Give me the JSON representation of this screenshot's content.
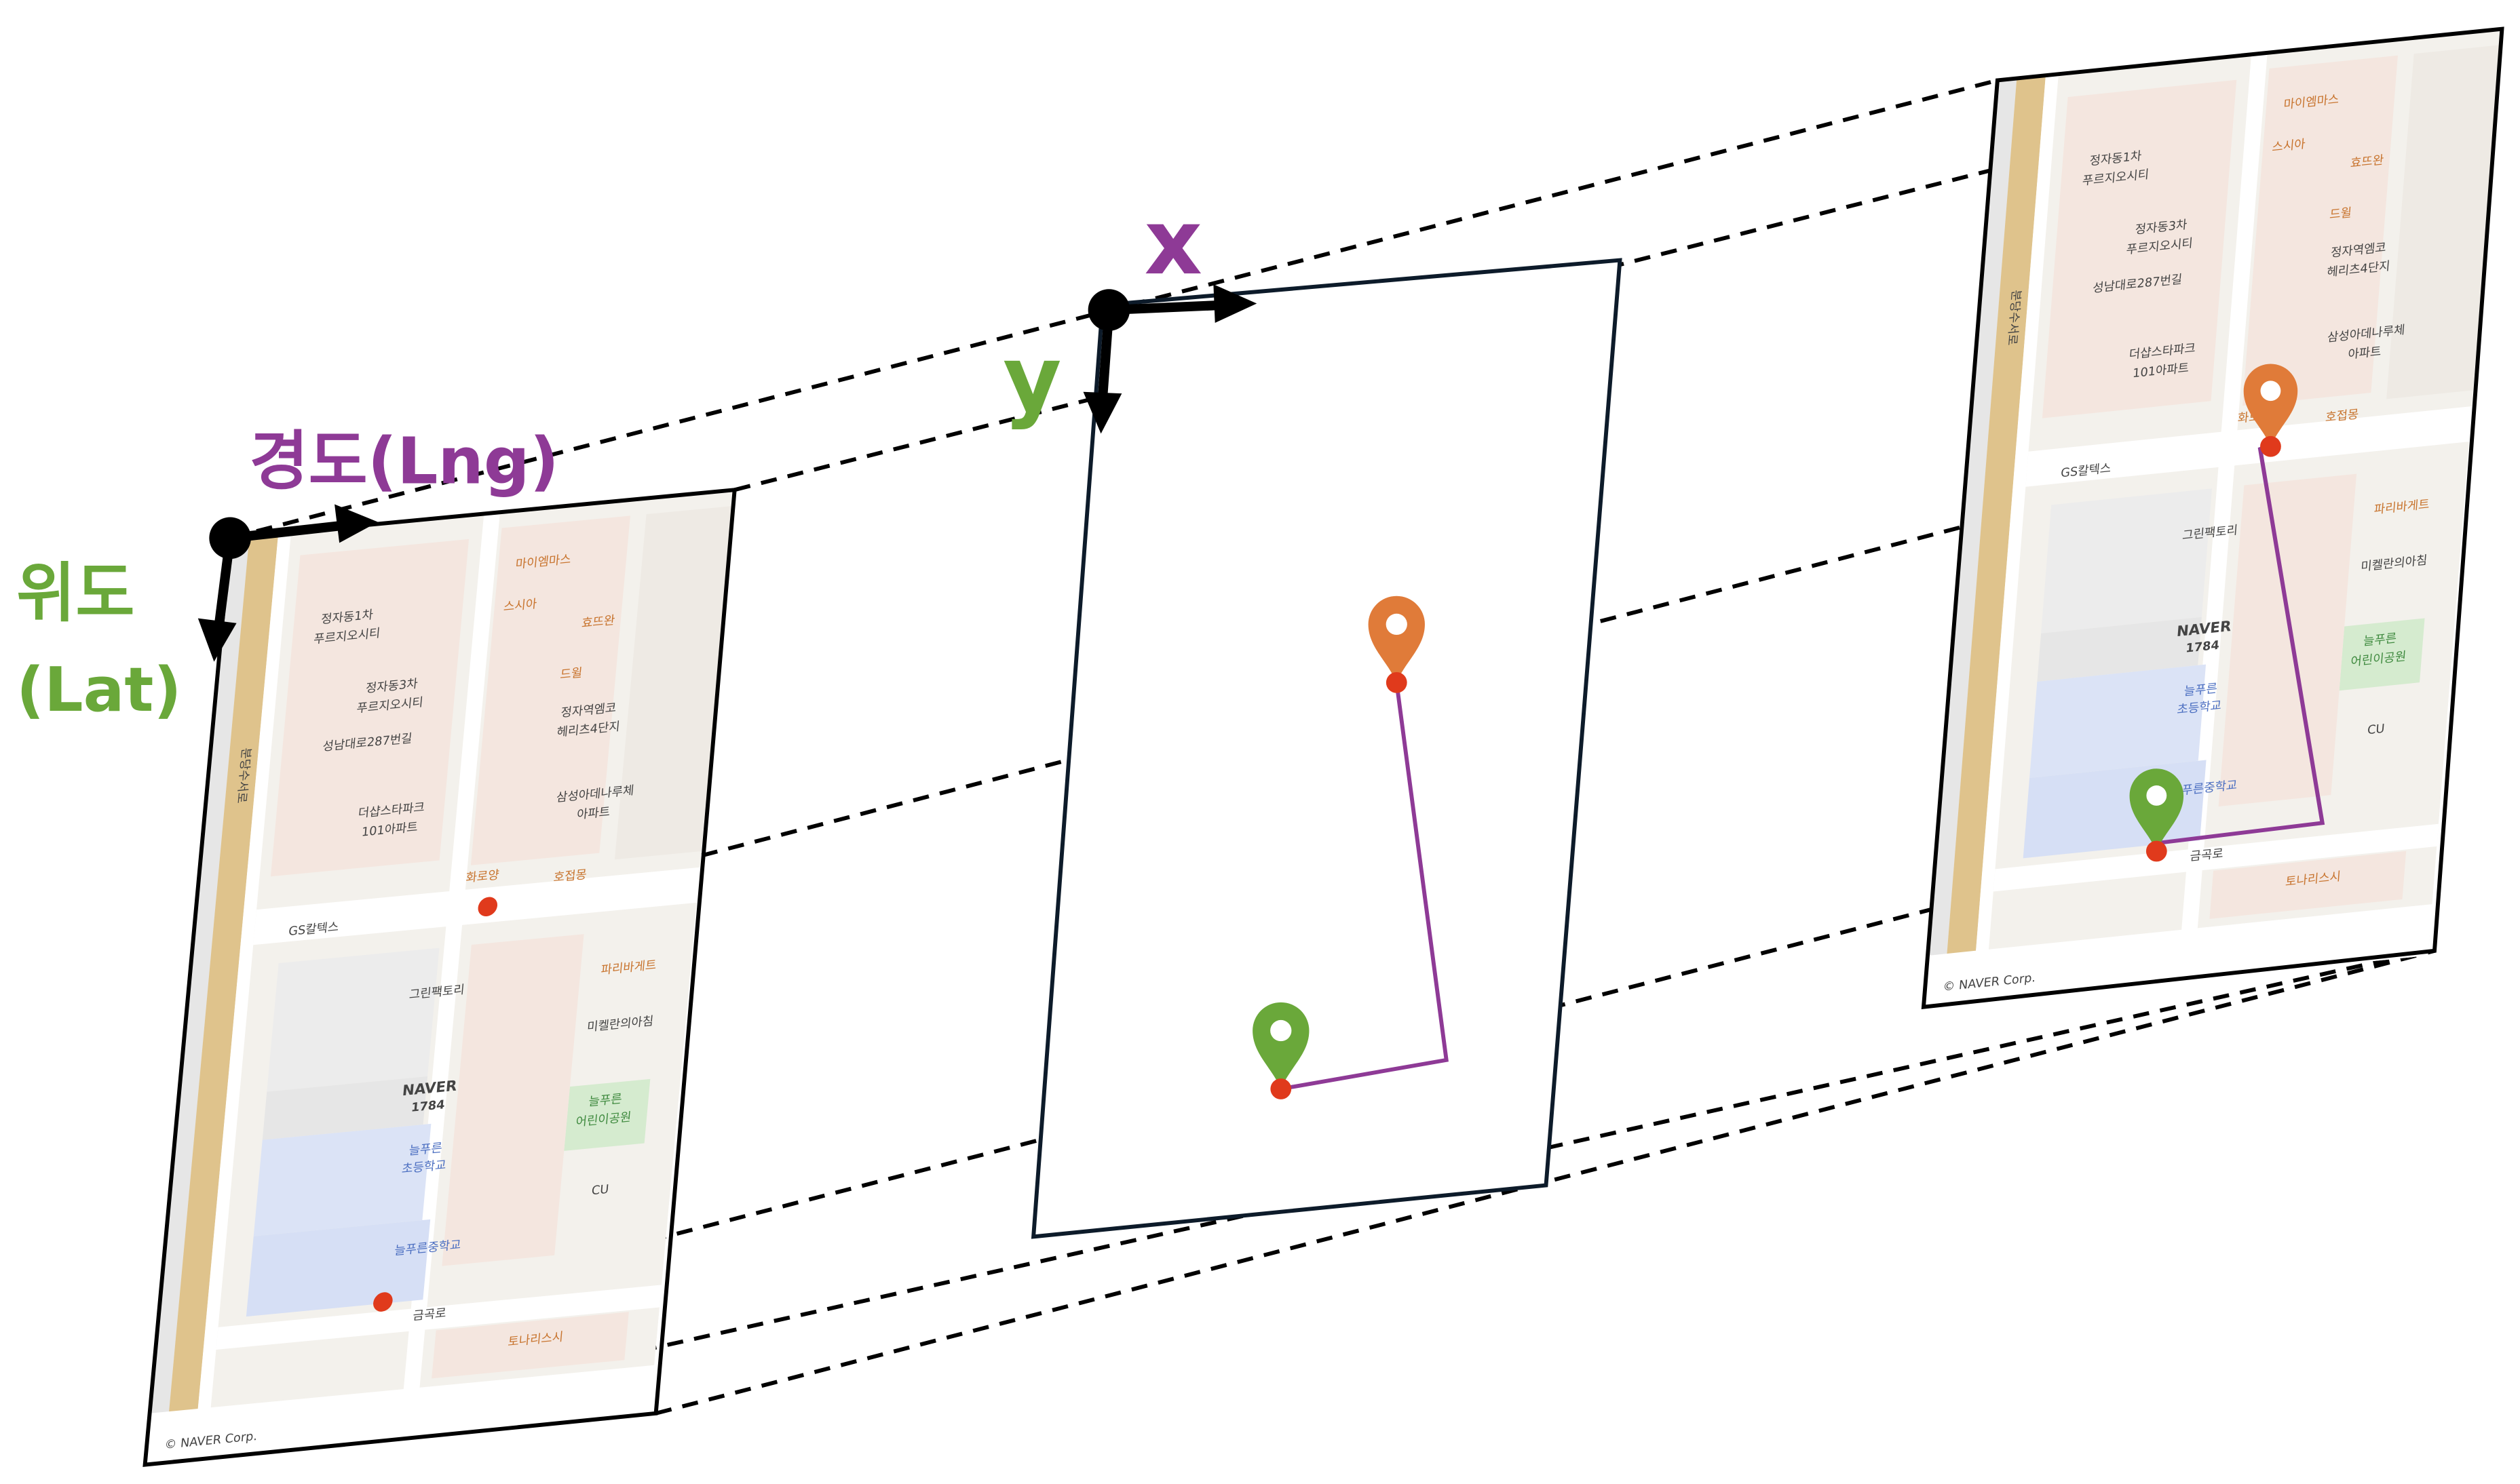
{
  "axes": {
    "lng_label": "경도(Lng)",
    "lat_label": [
      "위도",
      "(Lat)"
    ],
    "x_label": "x",
    "y_label": "y"
  },
  "map": {
    "labels": [
      "정자동1차",
      "푸르지오시티",
      "정자동3차",
      "푸르지오시티",
      "성남대로287번길",
      "더샵스타파크",
      "101아파트",
      "마이엠마스",
      "스시아",
      "효뜨완",
      "드윌",
      "정자역엠코",
      "헤리츠4단지",
      "삼성아데나루체",
      "아파트",
      "화로양",
      "호접몽",
      "GS칼텍스",
      "그린팩토리",
      "NAVER",
      "1784",
      "늘푸른",
      "초등학교",
      "늘푸른중학교",
      "파리바게트",
      "미켈란의아침",
      "늘푸른",
      "어린이공원",
      "CU",
      "금곡로",
      "토나리스시",
      "분당수서로",
      "© NAVER Corp."
    ]
  }
}
